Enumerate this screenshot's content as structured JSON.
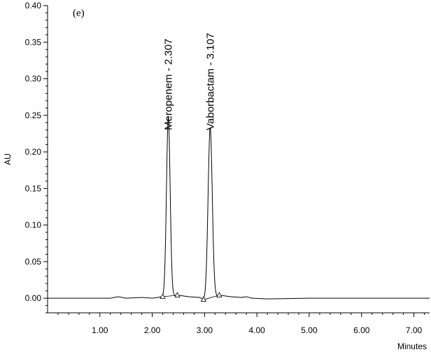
{
  "chart_data": {
    "type": "line",
    "panel_label": "(e)",
    "xlabel": "Minutes",
    "ylabel": "AU",
    "xlim": [
      0.0,
      7.3
    ],
    "ylim": [
      -0.02,
      0.4
    ],
    "xticks": [
      1.0,
      2.0,
      3.0,
      4.0,
      5.0,
      6.0,
      7.0
    ],
    "xtick_labels": [
      "1.00",
      "2.00",
      "3.00",
      "4.00",
      "5.00",
      "6.00",
      "7.00"
    ],
    "yticks": [
      0.0,
      0.05,
      0.1,
      0.15,
      0.2,
      0.25,
      0.3,
      0.35,
      0.4
    ],
    "ytick_labels": [
      "0.00",
      "0.05",
      "0.10",
      "0.15",
      "0.20",
      "0.25",
      "0.30",
      "0.35",
      "0.40"
    ],
    "grid": false,
    "peaks": [
      {
        "label": "Meropenem - 2.307",
        "retention_time": 2.307,
        "height": 0.245,
        "width": 0.035
      },
      {
        "label": "Vaborbactam - 3.107",
        "retention_time": 3.107,
        "height": 0.233,
        "width": 0.04
      }
    ],
    "baseline_markers": [
      {
        "x": 2.2,
        "y": 0.002
      },
      {
        "x": 2.48,
        "y": 0.004
      },
      {
        "x": 2.98,
        "y": -0.002
      },
      {
        "x": 3.28,
        "y": 0.004
      }
    ],
    "series": [
      {
        "x": [
          0.0,
          0.5,
          1.0,
          1.2,
          1.35,
          1.5,
          1.8,
          2.0,
          2.1,
          2.2,
          2.5,
          2.7,
          2.9,
          3.0,
          3.3,
          3.5,
          3.7,
          3.8,
          3.9,
          4.2,
          5.0,
          6.0,
          7.3
        ],
        "y": [
          0.0,
          0.0,
          0.0,
          0.0,
          0.002,
          0.0,
          0.001,
          0.0,
          0.001,
          0.002,
          0.004,
          0.002,
          0.001,
          -0.002,
          0.004,
          0.002,
          0.001,
          0.002,
          0.0,
          -0.001,
          0.0,
          0.0,
          0.0
        ]
      }
    ]
  }
}
